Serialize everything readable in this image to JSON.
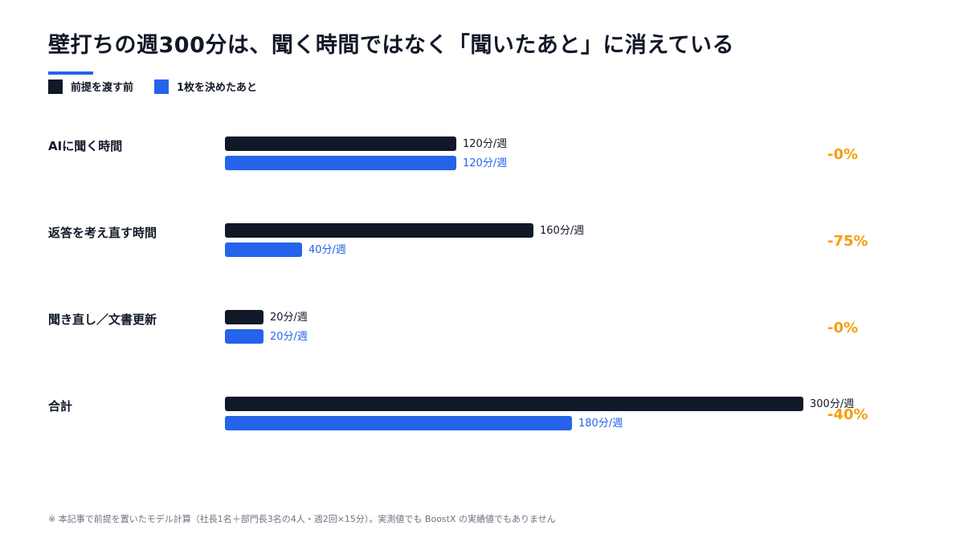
{
  "title": "壁打ちの週300分は、聞く時間ではなく「聞いたあと」に消えている",
  "legend": [
    {
      "label": "前提を渡す前",
      "color": "#111827"
    },
    {
      "label": "1枚を決めたあと",
      "color": "#2563eb"
    }
  ],
  "chart_data": {
    "type": "bar",
    "orientation": "horizontal",
    "categories": [
      "AIに聞く時間",
      "返答を考え直す時間",
      "聞き直し／文書更新",
      "合計"
    ],
    "series": [
      {
        "name": "前提を渡す前",
        "values": [
          120,
          160,
          20,
          300
        ],
        "color": "#111827",
        "labels": [
          "120分/週",
          "160分/週",
          "20分/週",
          "300分/週"
        ]
      },
      {
        "name": "1枚を決めたあと",
        "values": [
          120,
          40,
          20,
          180
        ],
        "color": "#2563eb",
        "labels": [
          "120分/週",
          "40分/週",
          "20分/週",
          "180分/週"
        ]
      }
    ],
    "changes": [
      "-0%",
      "-75%",
      "-0%",
      "-40%"
    ],
    "change_color": "#f59e0b",
    "xlim": [
      0,
      300
    ],
    "unit": "分/週"
  },
  "footnote": "※ 本記事で前提を置いたモデル計算（社長1名＋部門長3名の4人・週2回×15分）。実測値でも BoostX の実績値でもありません"
}
